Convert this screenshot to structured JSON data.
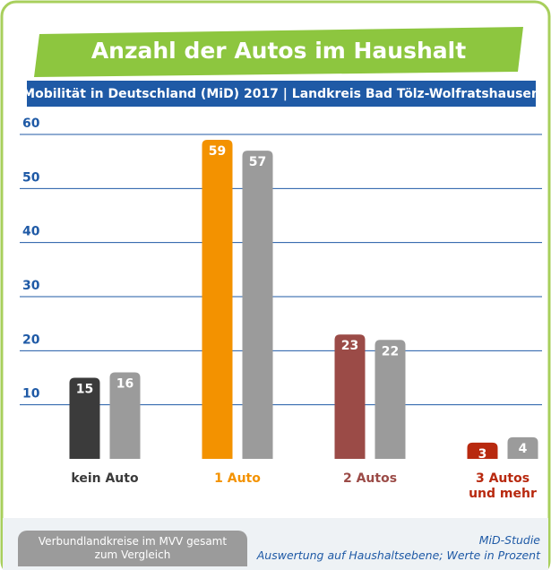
{
  "chart_data": {
    "type": "bar",
    "title": "Anzahl der Autos im Haushalt",
    "subtitle": "Mobilität in Deutschland (MiD) 2017 | Landkreis Bad Tölz-Wolfratshausen",
    "categories": [
      "kein Auto",
      "1 Auto",
      "2 Autos",
      "3 Autos und mehr"
    ],
    "series": [
      {
        "colors": [
          "#3b3b3b",
          "#f39200",
          "#9b4b47",
          "#b8290f"
        ],
        "values": [
          15,
          59,
          23,
          3
        ]
      },
      {
        "name": "Verbundlandkreise im MVV gesamt zum Vergleich",
        "color": "#9b9b9b",
        "values": [
          16,
          57,
          22,
          4
        ]
      }
    ],
    "ylim": [
      0,
      60
    ],
    "yticks": [
      10,
      20,
      30,
      40,
      50,
      60
    ],
    "grid": true,
    "source": "MiD-Studie",
    "note": "Auswertung auf Haushaltsebene; Werte in Prozent"
  }
}
